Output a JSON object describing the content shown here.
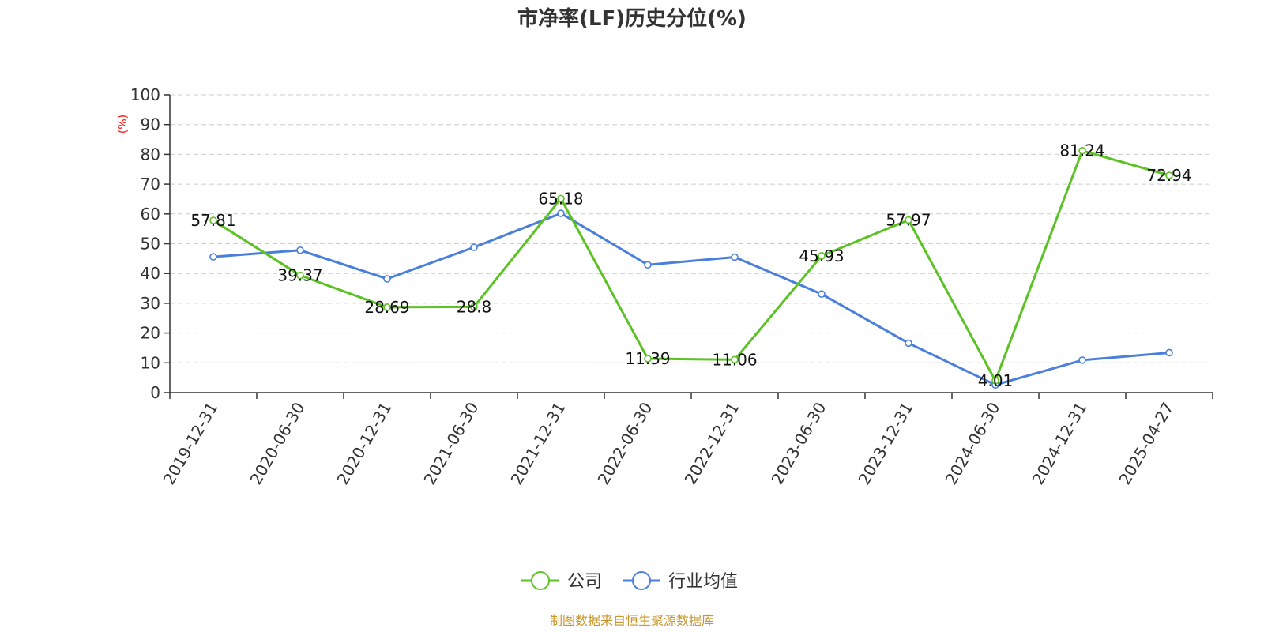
{
  "chart_data": {
    "type": "line",
    "title": "市净率(LF)历史分位(%)",
    "ylabel": "(%)",
    "ylim": [
      0,
      100
    ],
    "yticks": [
      0,
      10,
      20,
      30,
      40,
      50,
      60,
      70,
      80,
      90,
      100
    ],
    "grid": true,
    "legend_position": "bottom-center",
    "categories": [
      "2019-12-31",
      "2020-06-30",
      "2020-12-31",
      "2021-06-30",
      "2021-12-31",
      "2022-06-30",
      "2022-12-31",
      "2023-06-30",
      "2023-12-31",
      "2024-06-30",
      "2024-12-31",
      "2025-04-27"
    ],
    "series": [
      {
        "name": "公司",
        "color": "#5bc224",
        "values": [
          57.81,
          39.37,
          28.69,
          28.8,
          65.18,
          11.39,
          11.06,
          45.93,
          57.97,
          4.01,
          81.24,
          72.94
        ],
        "labels": [
          "57.81",
          "39.37",
          "28.69",
          "28.8",
          "65.18",
          "11.39",
          "11.06",
          "45.93",
          "57.97",
          "4.01",
          "81.24",
          "72.94"
        ]
      },
      {
        "name": "行业均值",
        "color": "#4a7fdc",
        "values": [
          45.6,
          47.8,
          38.2,
          48.8,
          60.2,
          42.9,
          45.5,
          33.1,
          16.6,
          2.6,
          10.9,
          13.4
        ]
      }
    ]
  },
  "source": {
    "text": "制图数据来自恒生聚源数据库",
    "color": "#c8962a"
  }
}
